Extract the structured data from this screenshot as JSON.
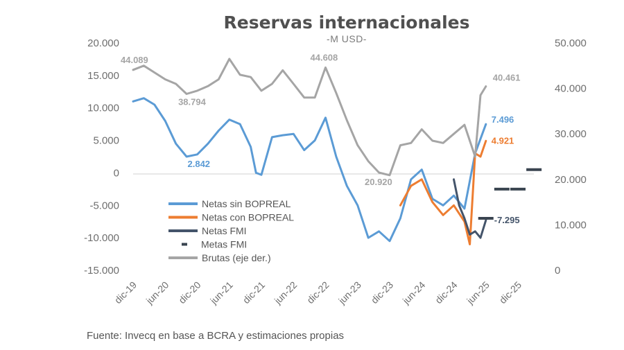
{
  "chart_data": {
    "type": "line",
    "title": "Reservas internacionales",
    "subtitle": "-M USD-",
    "source": "Fuente: Invecq en base a BCRA y estimaciones propias",
    "grid": false,
    "legend_position": "bottom-left",
    "x_ticks": [
      "dic-19",
      "jun-20",
      "dic-20",
      "jun-21",
      "dic-21",
      "jun-22",
      "dic-22",
      "jun-23",
      "dic-23",
      "jun-24",
      "dic-24",
      "jun-25",
      "dic-25"
    ],
    "left_axis": {
      "ylim": [
        -15000,
        20000
      ],
      "ticks": [
        "-15.000",
        "-10.000",
        "-5.000",
        "0",
        "5.000",
        "10.000",
        "15.000",
        "20.000"
      ]
    },
    "right_axis": {
      "ylim": [
        0,
        50000
      ],
      "ticks": [
        "0",
        "10.000",
        "20.000",
        "30.000",
        "40.000",
        "50.000"
      ]
    },
    "colors": {
      "netas_sin": "#5b9bd5",
      "netas_con": "#ed7d31",
      "netas_fmi": "#44546a",
      "metas_fmi": "#3a4450",
      "brutas": "#a5a5a5"
    },
    "series": [
      {
        "name": "Netas sin BOPREAL",
        "axis": "left",
        "color": "#5b9bd5",
        "x": [
          "dic-19",
          "feb-20",
          "abr-20",
          "jun-20",
          "ago-20",
          "oct-20",
          "dic-20",
          "feb-21",
          "abr-21",
          "jun-21",
          "ago-21",
          "oct-21",
          "nov-21",
          "dic-21",
          "feb-22",
          "abr-22",
          "jun-22",
          "ago-22",
          "oct-22",
          "dic-22",
          "feb-23",
          "abr-23",
          "jun-23",
          "ago-23",
          "oct-23",
          "dic-23",
          "feb-24",
          "abr-24",
          "jun-24",
          "ago-24",
          "oct-24",
          "dic-24",
          "feb-25",
          "abr-25",
          "jun-25"
        ],
        "y": [
          11000,
          11500,
          10500,
          8000,
          4500,
          2500,
          2842,
          4500,
          6500,
          8200,
          7500,
          4000,
          0,
          -300,
          5500,
          5800,
          6000,
          3500,
          5000,
          8500,
          2500,
          -2000,
          -5000,
          -10000,
          -9000,
          -10500,
          -7000,
          -1000,
          500,
          -4000,
          -5000,
          -3500,
          -5500,
          3000,
          7496
        ]
      },
      {
        "name": "Netas con BOPREAL",
        "axis": "left",
        "color": "#ed7d31",
        "x": [
          "feb-24",
          "abr-24",
          "jun-24",
          "ago-24",
          "oct-24",
          "dic-24",
          "feb-25",
          "mar-25",
          "abr-25",
          "may-25",
          "jun-25"
        ],
        "y": [
          -5000,
          -2000,
          -1000,
          -4500,
          -6500,
          -5000,
          -7500,
          -11000,
          3000,
          2500,
          4921
        ]
      },
      {
        "name": "Netas FMI",
        "axis": "left",
        "color": "#44546a",
        "x": [
          "dic-24",
          "ene-25",
          "feb-25",
          "mar-25",
          "abr-25",
          "may-25",
          "jun-25"
        ],
        "y": [
          -1000,
          -5000,
          -7000,
          -9500,
          -9000,
          -10000,
          -7295
        ]
      },
      {
        "name": "Metas FMI",
        "axis": "left",
        "color": "#3a4450",
        "x": [
          "jun-25",
          "sep-25",
          "dic-25",
          "mar-26"
        ],
        "y": [
          -7000,
          -2500,
          -2500,
          500
        ]
      },
      {
        "name": "Brutas (eje der.)",
        "axis": "right",
        "color": "#a5a5a5",
        "x": [
          "dic-19",
          "feb-20",
          "abr-20",
          "jun-20",
          "ago-20",
          "oct-20",
          "dic-20",
          "feb-21",
          "abr-21",
          "jun-21",
          "ago-21",
          "oct-21",
          "dic-21",
          "feb-22",
          "abr-22",
          "jun-22",
          "ago-22",
          "oct-22",
          "dic-22",
          "feb-23",
          "abr-23",
          "jun-23",
          "ago-23",
          "oct-23",
          "dic-23",
          "feb-24",
          "abr-24",
          "jun-24",
          "ago-24",
          "oct-24",
          "dic-24",
          "feb-25",
          "abr-25",
          "may-25",
          "jun-25"
        ],
        "y": [
          44089,
          45000,
          43500,
          42000,
          41000,
          38794,
          39500,
          40500,
          42000,
          46500,
          43000,
          42500,
          39500,
          41000,
          44000,
          41000,
          38000,
          38000,
          44608,
          39000,
          33000,
          27500,
          24000,
          21500,
          20920,
          27500,
          28000,
          31000,
          28500,
          28000,
          30000,
          32000,
          25000,
          38500,
          40461
        ]
      }
    ],
    "annotations": [
      {
        "text": "44.089",
        "x": "dic-19",
        "series": "Brutas (eje der.)",
        "color": "#a5a5a5"
      },
      {
        "text": "38.794",
        "x": "oct-20",
        "series": "Brutas (eje der.)",
        "color": "#a5a5a5"
      },
      {
        "text": "44.608",
        "x": "dic-22",
        "series": "Brutas (eje der.)",
        "color": "#a5a5a5"
      },
      {
        "text": "20.920",
        "x": "dic-23",
        "series": "Brutas (eje der.)",
        "color": "#a5a5a5"
      },
      {
        "text": "40.461",
        "x": "jun-25",
        "series": "Brutas (eje der.)",
        "color": "#a5a5a5"
      },
      {
        "text": "2.842",
        "x": "dic-20",
        "series": "Netas sin BOPREAL",
        "color": "#5b9bd5"
      },
      {
        "text": "7.496",
        "x": "jun-25",
        "series": "Netas sin BOPREAL",
        "color": "#5b9bd5"
      },
      {
        "text": "4.921",
        "x": "jun-25",
        "series": "Netas con BOPREAL",
        "color": "#ed7d31"
      },
      {
        "text": "-7.295",
        "x": "jun-25",
        "series": "Netas FMI",
        "color": "#44546a"
      }
    ]
  }
}
